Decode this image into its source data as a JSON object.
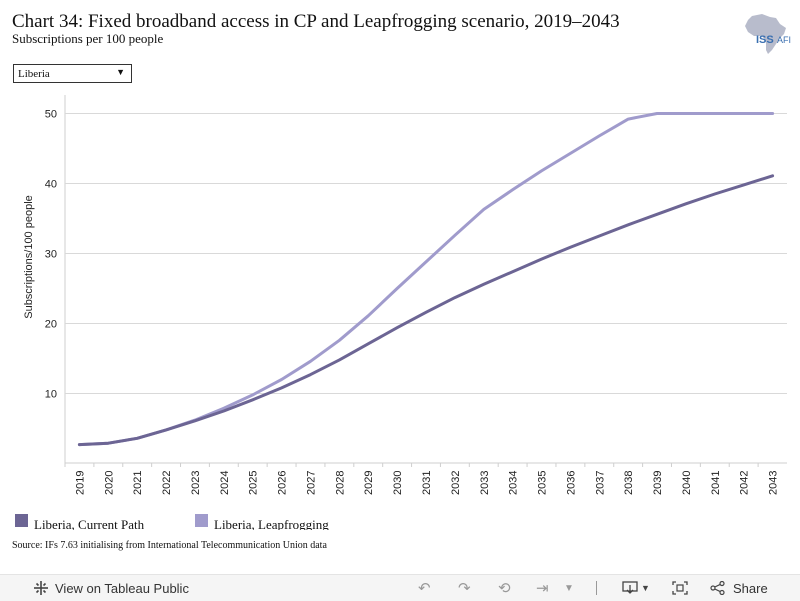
{
  "title": "Chart 34: Fixed broadband access in CP and Leapfrogging scenario, 2019–2043",
  "subtitle": "Subscriptions per 100 people",
  "logo": {
    "text_iss": "ISS",
    "text_afi": "AFI"
  },
  "filter": {
    "selected": "Liberia"
  },
  "source": "Source: IFs 7.63 initialising from International Telecommunication Union data",
  "toolbar": {
    "view_label": "View on Tableau Public",
    "share_label": "Share"
  },
  "colors": {
    "current_path": "#6c6594",
    "leapfrogging": "#a09bcc",
    "grid": "#d9d9d9"
  },
  "chart_data": {
    "type": "line",
    "title": "",
    "xlabel": "",
    "ylabel": "Subscriptions/100 people",
    "ylim": [
      0,
      52
    ],
    "yticks": [
      10,
      20,
      30,
      40,
      50
    ],
    "x": [
      "2019",
      "2020",
      "2021",
      "2022",
      "2023",
      "2024",
      "2025",
      "2026",
      "2027",
      "2028",
      "2029",
      "2030",
      "2031",
      "2032",
      "2033",
      "2034",
      "2035",
      "2036",
      "2037",
      "2038",
      "2039",
      "2040",
      "2041",
      "2042",
      "2043"
    ],
    "series": [
      {
        "name": "Liberia, Current Path",
        "color": "#6c6594",
        "values": [
          2.7,
          2.9,
          3.6,
          4.8,
          6.1,
          7.5,
          9.1,
          10.8,
          12.7,
          14.8,
          17.1,
          19.4,
          21.6,
          23.7,
          25.6,
          27.4,
          29.2,
          30.9,
          32.5,
          34.1,
          35.6,
          37.1,
          38.5,
          39.8,
          41.1
        ]
      },
      {
        "name": "Liberia, Leapfrogging",
        "color": "#a09bcc",
        "values": [
          2.7,
          2.9,
          3.6,
          4.8,
          6.2,
          7.9,
          9.8,
          12.0,
          14.6,
          17.6,
          21.1,
          25.0,
          28.8,
          32.6,
          36.3,
          39.1,
          41.8,
          44.3,
          46.8,
          49.2,
          50.0,
          50.0,
          50.0,
          50.0,
          50.0
        ]
      }
    ],
    "grid": true,
    "legend_position": "bottom-left"
  }
}
